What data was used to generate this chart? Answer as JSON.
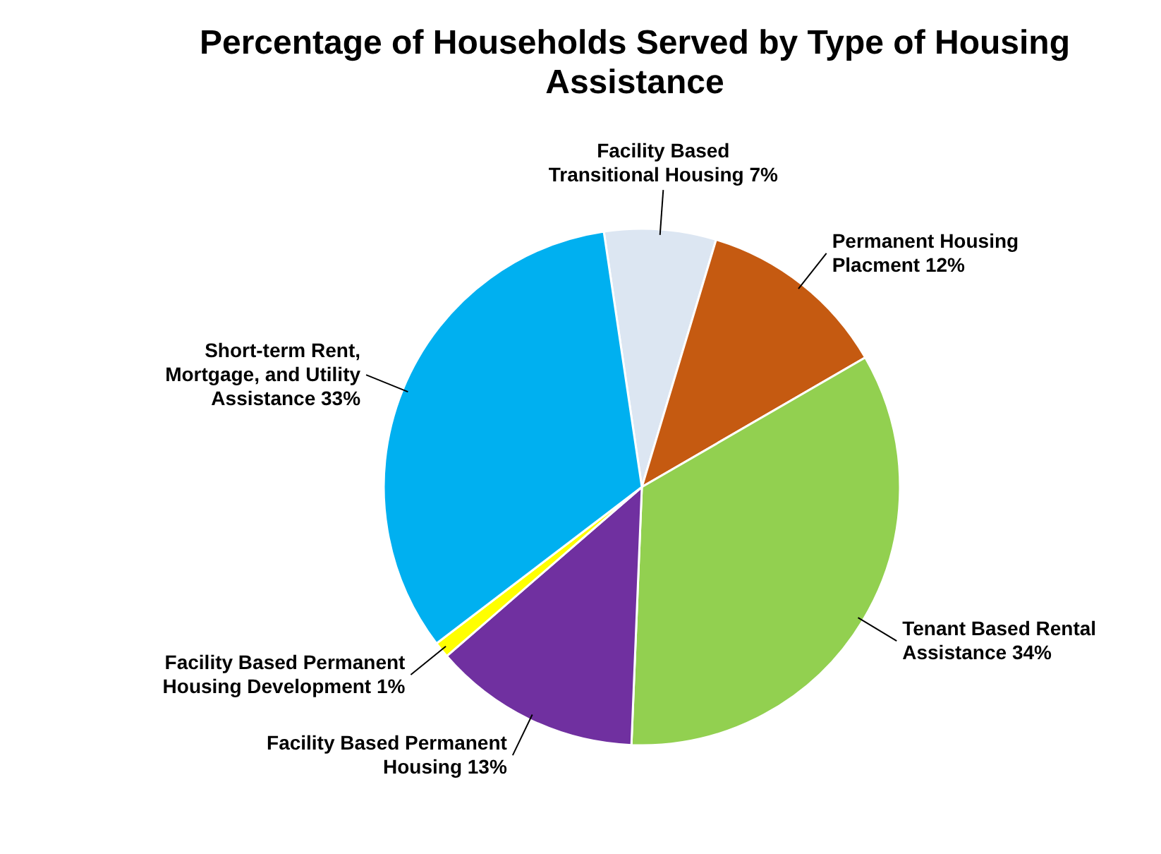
{
  "chart_data": {
    "type": "pie",
    "title": "Percentage of Households Served by Type of Housing Assistance",
    "categories": [
      "Facility Based Transitional Housing",
      "Permanent Housing Placment",
      "Tenant Based Rental Assistance",
      "Facility Based Permanent Housing",
      "Facility Based Permanent Housing Development",
      "Short-term Rent, Mortgage, and Utility Assistance"
    ],
    "values": [
      7,
      12,
      34,
      13,
      1,
      33
    ],
    "value_labels": [
      "7%",
      "12%",
      "34%",
      "13%",
      "1%",
      "33%"
    ],
    "colors": [
      "#dce6f2",
      "#c55a11",
      "#92d050",
      "#7030a0",
      "#ffff00",
      "#00b0f0"
    ]
  }
}
